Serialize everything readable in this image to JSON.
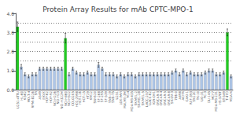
{
  "chart_data": {
    "type": "bar",
    "title": "Protein Array Results for mAb CPTC-MPO-1",
    "categories": [
      "U251-ATTU",
      "HL-60",
      "K-562",
      "MOLT-4",
      "RPMI-8226",
      "SR",
      "A549",
      "EKVX",
      "HOP-62",
      "HOP-92",
      "NCI-H226",
      "NCI-H23",
      "NCI-H322M",
      "NCI-H460",
      "NCI-H522",
      "COLO205",
      "HCC-2998",
      "HCT-116",
      "HCT-15",
      "HT29",
      "KM12",
      "SW-620",
      "SF-268",
      "SF-295",
      "SF-539",
      "SNB-19",
      "SNB-75",
      "U251",
      "LOX-IMVI",
      "MALME-3M",
      "M14",
      "MDA-MB-435",
      "SK-MEL-2",
      "SK-MEL-28",
      "SK-MEL-5",
      "UACC-257",
      "UACC-62",
      "IGR-OV1",
      "OVCAR-3",
      "OVCAR-4",
      "OVCAR-5",
      "OVCAR-8",
      "SK-OV-3",
      "786-0",
      "A498",
      "ACHN",
      "CAKI-1",
      "RXF-393",
      "SN12C",
      "TK-10",
      "UO-31",
      "PC-3",
      "DU-145",
      "MCF7",
      "MDA-MB-231",
      "HS-578T",
      "BT-549",
      "T-47D",
      "MDA-N"
    ],
    "values": [
      3.3,
      1.2,
      0.8,
      0.7,
      0.8,
      0.8,
      1.1,
      1.1,
      1.1,
      1.1,
      1.1,
      1.1,
      1.1,
      2.7,
      0.8,
      1.1,
      0.9,
      0.8,
      0.8,
      0.9,
      0.8,
      0.8,
      1.3,
      1.1,
      0.8,
      0.8,
      0.8,
      0.7,
      0.8,
      0.7,
      0.8,
      0.8,
      0.7,
      0.8,
      0.8,
      0.8,
      0.8,
      0.8,
      0.8,
      0.8,
      0.8,
      0.8,
      0.9,
      1.0,
      0.8,
      1.0,
      0.8,
      0.9,
      0.8,
      0.8,
      0.8,
      0.9,
      1.0,
      1.0,
      0.8,
      0.8,
      0.9,
      3.0,
      0.7
    ],
    "errors": [
      0.25,
      0.12,
      0.08,
      0.08,
      0.08,
      0.08,
      0.08,
      0.08,
      0.08,
      0.08,
      0.08,
      0.08,
      0.08,
      0.25,
      0.08,
      0.08,
      0.08,
      0.08,
      0.08,
      0.08,
      0.08,
      0.08,
      0.12,
      0.08,
      0.08,
      0.08,
      0.08,
      0.08,
      0.08,
      0.08,
      0.08,
      0.08,
      0.08,
      0.08,
      0.08,
      0.08,
      0.08,
      0.08,
      0.08,
      0.08,
      0.08,
      0.08,
      0.08,
      0.08,
      0.08,
      0.08,
      0.08,
      0.08,
      0.08,
      0.08,
      0.08,
      0.08,
      0.08,
      0.08,
      0.08,
      0.08,
      0.08,
      0.18,
      0.08
    ],
    "colors": [
      "#22cc22",
      "#aec6e8",
      "#aec6e8",
      "#aec6e8",
      "#aec6e8",
      "#aec6e8",
      "#aec6e8",
      "#aec6e8",
      "#aec6e8",
      "#aec6e8",
      "#aec6e8",
      "#aec6e8",
      "#aec6e8",
      "#22cc22",
      "#aec6e8",
      "#aec6e8",
      "#aec6e8",
      "#aec6e8",
      "#aec6e8",
      "#aec6e8",
      "#aec6e8",
      "#aec6e8",
      "#aec6e8",
      "#aec6e8",
      "#aec6e8",
      "#aec6e8",
      "#aec6e8",
      "#aec6e8",
      "#aec6e8",
      "#aec6e8",
      "#aec6e8",
      "#aec6e8",
      "#aec6e8",
      "#aec6e8",
      "#aec6e8",
      "#aec6e8",
      "#aec6e8",
      "#aec6e8",
      "#aec6e8",
      "#aec6e8",
      "#aec6e8",
      "#aec6e8",
      "#aec6e8",
      "#aec6e8",
      "#aec6e8",
      "#aec6e8",
      "#aec6e8",
      "#aec6e8",
      "#aec6e8",
      "#aec6e8",
      "#aec6e8",
      "#aec6e8",
      "#aec6e8",
      "#aec6e8",
      "#aec6e8",
      "#aec6e8",
      "#aec6e8",
      "#22cc22",
      "#aec6e8"
    ],
    "hlines": [
      1.5,
      2.0,
      2.5,
      3.0,
      3.5
    ],
    "ylim": [
      0.0,
      4.0
    ],
    "yticks": [
      {
        "value": 0.0,
        "label": "0.0"
      },
      {
        "value": 1.0,
        "label": "1.0"
      },
      {
        "value": 2.0,
        "label": "2.0"
      },
      {
        "value": 3.0,
        "label": "3.0"
      },
      {
        "value": 4.0,
        "label": "4.0"
      }
    ],
    "grid": false
  }
}
